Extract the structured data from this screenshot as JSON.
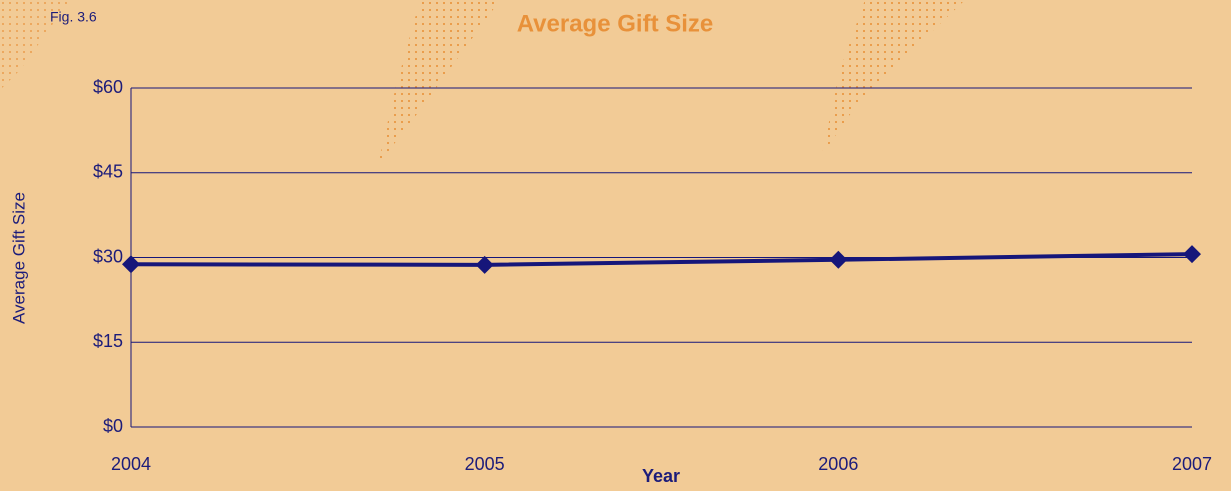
{
  "chart_data": {
    "type": "line",
    "title": "Average Gift Size",
    "annotation": "Fig. 3.6",
    "x_label": "Year",
    "y_label": "Average Gift Size",
    "x": [
      2004,
      2005,
      2006,
      2007
    ],
    "xlim": [
      2004,
      2007
    ],
    "xticks": [
      2004,
      2005,
      2006,
      2007
    ],
    "ylim": [
      0,
      60
    ],
    "yticks": [
      {
        "value": 0,
        "label": "$0"
      },
      {
        "value": 15,
        "label": "$15"
      },
      {
        "value": 30,
        "label": "$30"
      },
      {
        "value": 45,
        "label": "$45"
      },
      {
        "value": 60,
        "label": "$60"
      }
    ],
    "grid": true,
    "series": [
      {
        "name": "Average Gift Size",
        "color": "#16167a",
        "values": [
          28.8,
          28.7,
          29.6,
          30.6
        ]
      }
    ]
  }
}
